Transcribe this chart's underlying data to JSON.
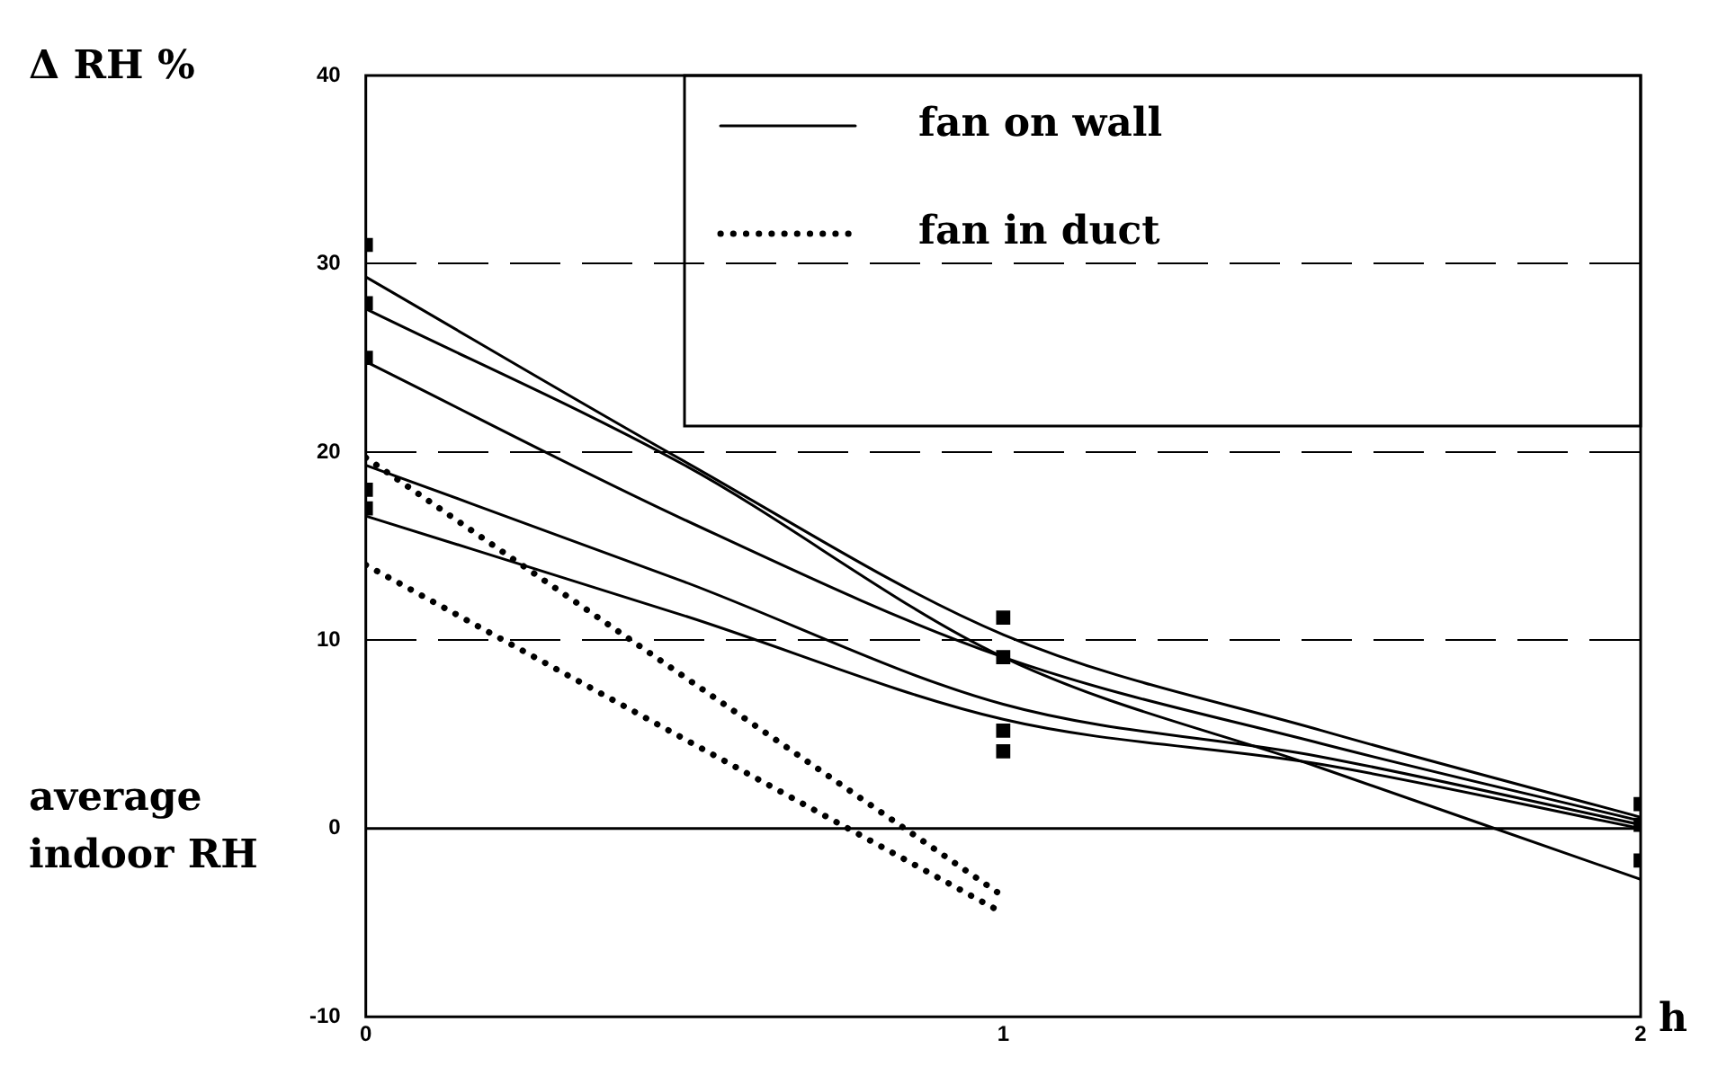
{
  "chart_data": {
    "type": "line",
    "ylabel": "Δ RH %",
    "xlabel": "h",
    "annotations": [
      "average indoor RH"
    ],
    "xlim": [
      0,
      2
    ],
    "xticks": [
      0,
      1,
      2
    ],
    "ylim": [
      -10,
      40
    ],
    "yticks": [
      -10,
      0,
      10,
      20,
      30,
      40
    ],
    "grid": "y",
    "legend": "top right",
    "ref_lines": [
      {
        "axis": "y",
        "value": 0,
        "color": "#000000",
        "line_style": "solid"
      }
    ],
    "series": [
      {
        "name": "fan on wall",
        "color": "#000000",
        "line_style": "solid",
        "x": [
          0,
          0.5,
          1,
          1.5,
          2
        ],
        "values": [
          29.3,
          19.5,
          10.3,
          5.2,
          0.6
        ]
      },
      {
        "color": "#000000",
        "line_style": "solid",
        "x": [
          0,
          0.5,
          1,
          1.5,
          2
        ],
        "values": [
          27.6,
          19.3,
          9.1,
          3.2,
          -2.7
        ]
      },
      {
        "color": "#000000",
        "line_style": "solid",
        "x": [
          0,
          0.5,
          1,
          1.5,
          2
        ],
        "values": [
          24.8,
          16.4,
          9.1,
          4.5,
          0.4
        ]
      },
      {
        "color": "#000000",
        "line_style": "solid",
        "x": [
          0,
          0.5,
          1,
          1.5,
          2
        ],
        "values": [
          19.3,
          13.1,
          6.6,
          3.8,
          0.2
        ]
      },
      {
        "color": "#000000",
        "line_style": "solid",
        "x": [
          0,
          0.5,
          1,
          1.5,
          2
        ],
        "values": [
          16.6,
          11.3,
          5.8,
          3.4,
          0
        ]
      },
      {
        "name": "fan in duct",
        "color": "#000000",
        "line_style": "dotted",
        "x": [
          0,
          1
        ],
        "values": [
          19.7,
          -3.6
        ]
      },
      {
        "color": "#000000",
        "line_style": "dotted",
        "x": [
          0,
          1
        ],
        "values": [
          14,
          -4.5
        ]
      },
      {
        "type": "scatter",
        "color": "#000000",
        "marker": "square",
        "x": [
          0,
          0,
          0,
          0,
          0,
          1,
          1,
          1,
          1,
          2,
          2,
          2
        ],
        "values": [
          31,
          27.9,
          25,
          18,
          17,
          11.2,
          9.1,
          5.2,
          4.1,
          1.3,
          0.2,
          -1.7
        ]
      }
    ]
  }
}
